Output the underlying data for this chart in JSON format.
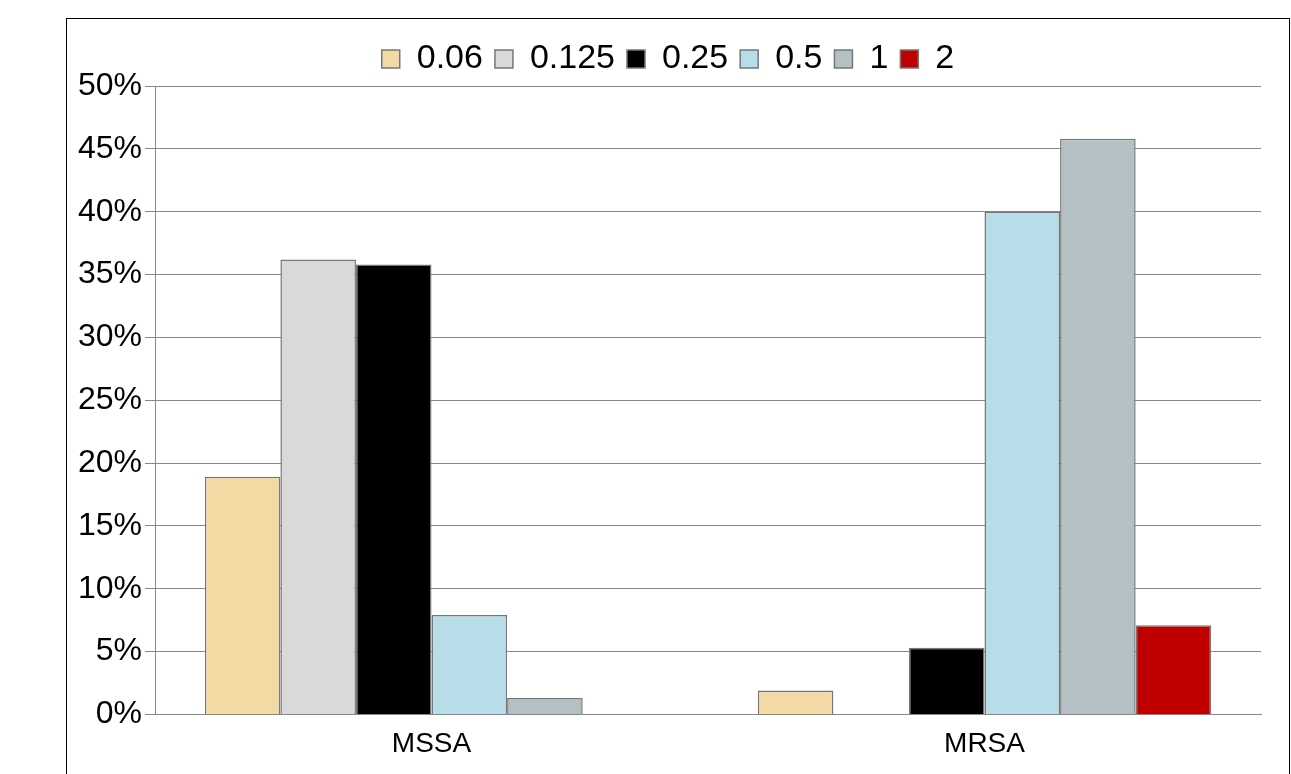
{
  "chart_data": {
    "type": "bar",
    "categories": [
      "MSSA",
      "MRSA"
    ],
    "series": [
      {
        "name": "0.06",
        "color": "#f3d9a4",
        "values": [
          18.9,
          1.9
        ]
      },
      {
        "name": "0.125",
        "color": "#d9d9d9",
        "values": [
          36.2,
          null
        ]
      },
      {
        "name": "0.25",
        "color": "#000000",
        "values": [
          35.8,
          5.3
        ]
      },
      {
        "name": "0.5",
        "color": "#b7dde8",
        "values": [
          7.9,
          40.0
        ]
      },
      {
        "name": "1",
        "color": "#b4c0c4",
        "values": [
          1.3,
          45.8
        ]
      },
      {
        "name": "2",
        "color": "#c00000",
        "values": [
          null,
          7.1
        ]
      }
    ],
    "ylim": [
      0,
      50
    ],
    "yticks": [
      {
        "value": 0,
        "label": "0%"
      },
      {
        "value": 5,
        "label": "5%"
      },
      {
        "value": 10,
        "label": "10%"
      },
      {
        "value": 15,
        "label": "15%"
      },
      {
        "value": 20,
        "label": "20%"
      },
      {
        "value": 25,
        "label": "25%"
      },
      {
        "value": 30,
        "label": "30%"
      },
      {
        "value": 35,
        "label": "35%"
      },
      {
        "value": 40,
        "label": "40%"
      },
      {
        "value": 45,
        "label": "45%"
      },
      {
        "value": 50,
        "label": "50%"
      }
    ],
    "grid": "y",
    "legend": "top"
  }
}
